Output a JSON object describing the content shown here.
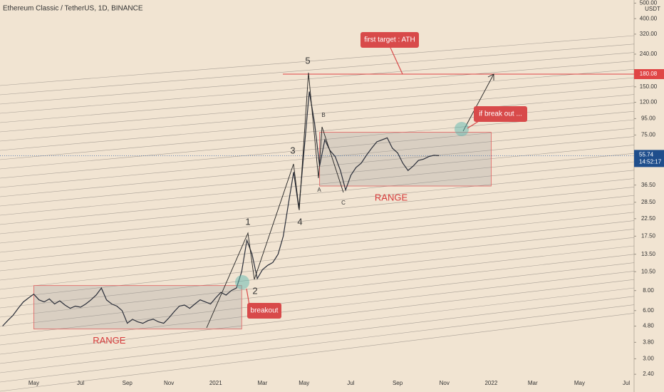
{
  "chart_data": {
    "type": "line",
    "title": "Ethereum Classic / TetherUS, 1D, BINANCE",
    "log_scale": true,
    "color": "#2a2e39",
    "y_unit": "USDT",
    "categories": [
      null,
      null,
      null,
      null,
      null,
      null,
      "May",
      null,
      null,
      null,
      null,
      null,
      null,
      null,
      null,
      "Jul",
      null,
      null,
      null,
      null,
      null,
      null,
      null,
      null,
      "Sep",
      null,
      null,
      null,
      null,
      null,
      null,
      null,
      "Nov",
      null,
      null,
      null,
      null,
      null,
      null,
      null,
      null,
      "2021",
      null,
      null,
      null,
      null,
      null,
      null,
      null,
      null,
      "Mar",
      null,
      null,
      null,
      null,
      null,
      null,
      null,
      "May",
      null,
      null,
      null,
      null,
      null,
      null,
      null,
      null,
      "Jul",
      null,
      null,
      null,
      null,
      null,
      null,
      null,
      null,
      "Sep",
      null,
      null,
      null,
      null,
      null,
      null,
      null,
      null,
      "Nov",
      null,
      null,
      null,
      null,
      null,
      null,
      null,
      null,
      "2022",
      null,
      null,
      null,
      null,
      null,
      null,
      null,
      "Mar",
      null,
      null,
      null,
      null,
      null,
      null,
      null,
      null,
      "May",
      null,
      null,
      null,
      null,
      null,
      null,
      null,
      null,
      "Jul",
      null
    ],
    "values": [
      4.8,
      5.2,
      5.6,
      6.2,
      6.8,
      7.2,
      7.6,
      7.0,
      6.8,
      7.1,
      6.6,
      6.9,
      6.5,
      6.2,
      6.4,
      6.3,
      6.6,
      7.0,
      7.5,
      8.3,
      7.0,
      6.6,
      6.4,
      6.0,
      5.0,
      5.3,
      5.1,
      5.0,
      5.2,
      5.3,
      5.1,
      5.0,
      5.4,
      5.9,
      6.4,
      6.5,
      6.2,
      6.6,
      7.0,
      6.8,
      6.6,
      7.2,
      7.8,
      7.5,
      8.0,
      8.3,
      10.5,
      16.5,
      13.5,
      9.5,
      10.8,
      11.5,
      12.0,
      13.5,
      17.5,
      28.0,
      44.0,
      26.0,
      60.0,
      140.0,
      90.0,
      48.0,
      70.0,
      60.0,
      55.0,
      45.0,
      34.0,
      42.0,
      47.0,
      50.0,
      56.0,
      62.0,
      68.0,
      70.0,
      72.0,
      62.0,
      58.0,
      50.0,
      45.0,
      48.0,
      52.0,
      53.0,
      55.0,
      56.0,
      55.74,
      null,
      null,
      null,
      null,
      null,
      null,
      null,
      null,
      null,
      null,
      null,
      null,
      null,
      null,
      null,
      null,
      null,
      null,
      null,
      null,
      null,
      null,
      null,
      null,
      null,
      null,
      null,
      null,
      null,
      null,
      null,
      null,
      null,
      null,
      null,
      null,
      null
    ],
    "ylim": [
      1.86,
      523
    ],
    "yticks": [
      {
        "value": 500,
        "label": "500.00"
      },
      {
        "value": 400,
        "label": "400.00"
      },
      {
        "value": 320,
        "label": "320.00"
      },
      {
        "value": 240,
        "label": "240.00"
      },
      {
        "value": 150,
        "label": "150.00"
      },
      {
        "value": 120,
        "label": "120.00"
      },
      {
        "value": 95,
        "label": "95.00"
      },
      {
        "value": 75,
        "label": "75.00"
      },
      {
        "value": 36.5,
        "label": "36.50"
      },
      {
        "value": 28.5,
        "label": "28.50"
      },
      {
        "value": 22.5,
        "label": "22.50"
      },
      {
        "value": 17.5,
        "label": "17.50"
      },
      {
        "value": 13.5,
        "label": "13.50"
      },
      {
        "value": 10.5,
        "label": "10.50"
      },
      {
        "value": 8,
        "label": "8.00"
      },
      {
        "value": 6,
        "label": "6.00"
      },
      {
        "value": 4.8,
        "label": "4.80"
      },
      {
        "value": 3.8,
        "label": "3.80"
      },
      {
        "value": 3,
        "label": "3.00"
      },
      {
        "value": 2.4,
        "label": "2.40"
      }
    ],
    "ath_price": 180.08,
    "current_price": 55.74,
    "countdown": "14:52:17",
    "range_boxes": [
      {
        "label": "RANGE",
        "top": 8.6,
        "bottom": 4.6
      },
      {
        "label": "RANGE",
        "top": 78,
        "bottom": 36
      }
    ],
    "wave_labels": [
      "1",
      "2",
      "3",
      "4",
      "5",
      "A",
      "B",
      "C"
    ],
    "annotations": {
      "first_target": "first target : ATH",
      "break_out": "if break out ...",
      "breakout": "breakout"
    }
  }
}
